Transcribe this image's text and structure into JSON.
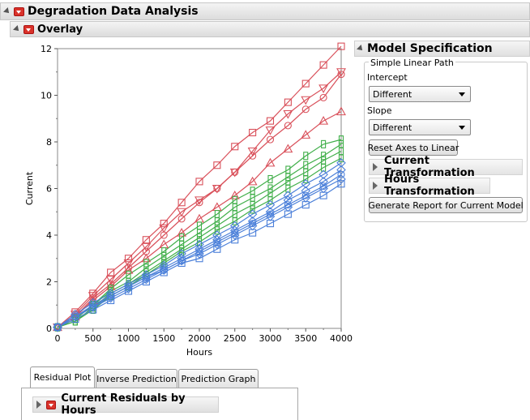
{
  "report": {
    "title": "Degradation Data Analysis",
    "overlay_title": "Overlay"
  },
  "model_spec": {
    "title": "Model Specification",
    "group_label": "Simple Linear Path",
    "intercept_label": "Intercept",
    "intercept_value": "Different",
    "slope_label": "Slope",
    "slope_value": "Different",
    "reset_button": "Reset Axes to Linear",
    "current_transformation": "Current Transformation",
    "hours_transformation": "Hours Transformation",
    "generate_button": "Generate Report for Current Model"
  },
  "tabs": [
    {
      "label": "Residual Plot",
      "active": true
    },
    {
      "label": "Inverse Prediction",
      "active": false
    },
    {
      "label": "Prediction Graph",
      "active": false
    }
  ],
  "residuals_title": "Current Residuals by Hours",
  "colors": {
    "red": "#d9505a",
    "green": "#3fae48",
    "blue": "#4a7fd9",
    "accent_button": "#d9322a"
  },
  "chart_data": {
    "type": "line",
    "xlabel": "Hours",
    "ylabel": "Current",
    "xlim": [
      0,
      4000
    ],
    "ylim": [
      0,
      12
    ],
    "x_ticks": [
      "0",
      "500",
      "1000",
      "1500",
      "2000",
      "2500",
      "3000",
      "3500",
      "4000"
    ],
    "y_ticks": [
      "0",
      "2",
      "4",
      "6",
      "8",
      "10",
      "12"
    ],
    "x": [
      0,
      250,
      500,
      750,
      1000,
      1250,
      1500,
      1750,
      2000,
      2250,
      2500,
      2750,
      3000,
      3250,
      3500,
      3750,
      4000
    ],
    "series": [
      {
        "group": "red",
        "marker": "square",
        "values": [
          0.05,
          0.7,
          1.5,
          2.4,
          3.0,
          3.8,
          4.5,
          5.4,
          6.3,
          7.0,
          7.8,
          8.4,
          8.9,
          9.7,
          10.5,
          11.3,
          12.1
        ]
      },
      {
        "group": "red",
        "marker": "triangle-down",
        "values": [
          0.05,
          0.6,
          1.4,
          2.1,
          2.8,
          3.5,
          4.3,
          5.0,
          5.5,
          6.0,
          6.7,
          7.6,
          8.5,
          9.2,
          9.8,
          10.3,
          11.0
        ]
      },
      {
        "group": "red",
        "marker": "circle",
        "values": [
          0.05,
          0.5,
          1.3,
          1.9,
          2.6,
          3.3,
          4.0,
          4.7,
          5.4,
          6.0,
          6.7,
          7.4,
          8.1,
          8.7,
          9.4,
          9.9,
          10.9
        ]
      },
      {
        "group": "red",
        "marker": "triangle-up",
        "values": [
          0.05,
          0.5,
          1.2,
          1.8,
          2.5,
          3.0,
          3.6,
          4.1,
          4.7,
          5.2,
          5.7,
          6.3,
          7.1,
          7.7,
          8.3,
          8.9,
          9.3
        ]
      },
      {
        "group": "green",
        "marker": "square-tall",
        "values": [
          0.05,
          0.4,
          1.0,
          1.7,
          2.3,
          2.8,
          3.3,
          3.9,
          4.4,
          4.9,
          5.5,
          5.9,
          6.4,
          6.8,
          7.4,
          7.9,
          8.1
        ]
      },
      {
        "group": "green",
        "marker": "square-tall",
        "values": [
          0.05,
          0.4,
          1.0,
          1.6,
          2.0,
          2.6,
          3.1,
          3.6,
          4.1,
          4.6,
          5.2,
          5.6,
          6.0,
          6.5,
          7.0,
          7.4,
          7.9
        ]
      },
      {
        "group": "green",
        "marker": "square-tall",
        "values": [
          0.05,
          0.3,
          0.9,
          1.5,
          1.9,
          2.4,
          2.9,
          3.4,
          3.9,
          4.4,
          4.9,
          5.3,
          5.8,
          6.3,
          6.7,
          7.2,
          7.6
        ]
      },
      {
        "group": "green",
        "marker": "square-tall",
        "values": [
          0.05,
          0.3,
          0.8,
          1.4,
          1.8,
          2.3,
          2.8,
          3.3,
          3.7,
          4.2,
          4.6,
          5.1,
          5.5,
          6.0,
          6.4,
          6.9,
          7.3
        ]
      },
      {
        "group": "blue",
        "marker": "diamond",
        "values": [
          0.05,
          0.6,
          1.1,
          1.5,
          1.9,
          2.3,
          2.7,
          3.2,
          3.6,
          4.0,
          4.4,
          4.9,
          5.3,
          5.7,
          6.2,
          6.6,
          7.1
        ]
      },
      {
        "group": "blue",
        "marker": "diamond",
        "values": [
          0.05,
          0.5,
          1.0,
          1.4,
          1.8,
          2.2,
          2.6,
          3.0,
          3.4,
          3.8,
          4.2,
          4.6,
          5.0,
          5.5,
          5.9,
          6.3,
          6.8
        ]
      },
      {
        "group": "blue",
        "marker": "diamond",
        "values": [
          0.05,
          0.5,
          0.9,
          1.3,
          1.7,
          2.1,
          2.5,
          2.9,
          3.2,
          3.6,
          4.0,
          4.4,
          4.8,
          5.2,
          5.6,
          6.0,
          6.4
        ]
      },
      {
        "group": "blue",
        "marker": "square",
        "values": [
          0.05,
          0.4,
          0.8,
          1.2,
          1.6,
          2.0,
          2.4,
          2.8,
          3.0,
          3.4,
          3.8,
          4.1,
          4.5,
          4.9,
          5.3,
          5.7,
          6.2
        ]
      },
      {
        "group": "blue",
        "marker": "circle",
        "values": [
          0.05,
          0.5,
          0.9,
          1.4,
          1.8,
          2.2,
          2.5,
          2.9,
          3.3,
          3.7,
          4.1,
          4.5,
          4.9,
          5.3,
          5.7,
          6.1,
          6.6
        ]
      }
    ]
  }
}
